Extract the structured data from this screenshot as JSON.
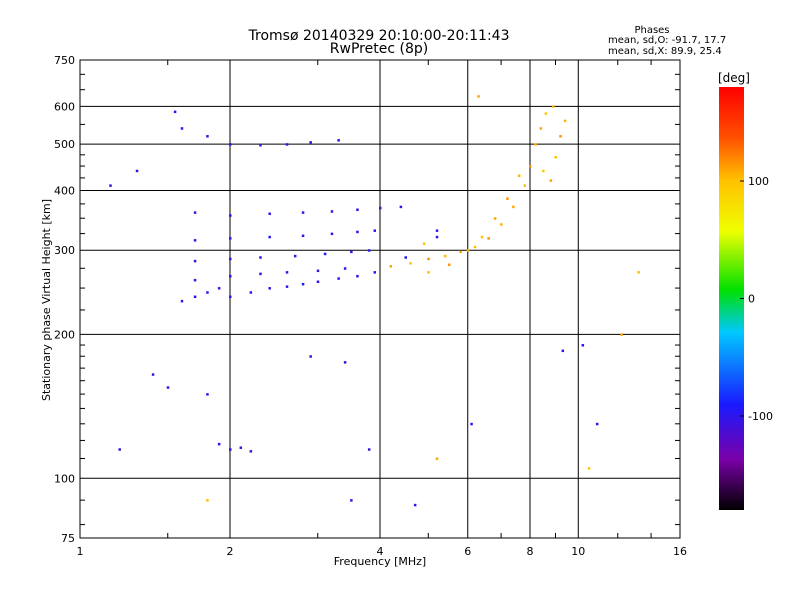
{
  "header": {
    "title": "Tromsø 20140329 20:10:00-20:11:43",
    "subtitle": "RwPretec (8p)"
  },
  "stats": {
    "heading": "Phases",
    "line_o": "mean, sd,O: -91.7, 17.7",
    "line_x": "mean, sd,X:  89.9, 25.4"
  },
  "colorbar": {
    "label": "[deg]",
    "ticks": [
      {
        "value": 100,
        "text": "100"
      },
      {
        "value": 0,
        "text": "0"
      },
      {
        "value": -100,
        "text": "-100"
      }
    ],
    "range": [
      -180,
      180
    ]
  },
  "chart_data": {
    "type": "scatter",
    "title": "Tromsø 20140329 20:10:00-20:11:43",
    "subtitle": "RwPretec (8p)",
    "xlabel": "Frequency [MHz]",
    "ylabel": "Stationary phase Virtual Height [km]",
    "x_scale": "log",
    "y_scale": "log",
    "xlim": [
      1,
      16
    ],
    "ylim": [
      75,
      750
    ],
    "grid": true,
    "x_ticks": [
      {
        "value": 1,
        "text": "1"
      },
      {
        "value": 2,
        "text": "2"
      },
      {
        "value": 4,
        "text": "4"
      },
      {
        "value": 6,
        "text": "6"
      },
      {
        "value": 8,
        "text": "8"
      },
      {
        "value": 10,
        "text": "10"
      },
      {
        "value": 16,
        "text": "16"
      }
    ],
    "y_ticks": [
      {
        "value": 75,
        "text": "75"
      },
      {
        "value": 100,
        "text": "100"
      },
      {
        "value": 200,
        "text": "200"
      },
      {
        "value": 300,
        "text": "300"
      },
      {
        "value": 400,
        "text": "400"
      },
      {
        "value": 500,
        "text": "500"
      },
      {
        "value": 600,
        "text": "600"
      },
      {
        "value": 750,
        "text": "750"
      }
    ],
    "color_by": "phase (deg)",
    "series": [
      {
        "values": [
          [
            1.6,
            235,
            -105
          ],
          [
            1.7,
            240,
            -100
          ],
          [
            1.8,
            245,
            -95
          ],
          [
            1.9,
            250,
            -110
          ],
          [
            2.0,
            240,
            -100
          ],
          [
            2.2,
            245,
            -95
          ],
          [
            2.4,
            250,
            -105
          ],
          [
            2.6,
            252,
            -100
          ],
          [
            2.8,
            255,
            -90
          ],
          [
            3.0,
            258,
            -100
          ],
          [
            3.3,
            262,
            -95
          ],
          [
            3.6,
            265,
            -100
          ],
          [
            3.9,
            270,
            -90
          ],
          [
            1.7,
            260,
            -100
          ],
          [
            2.0,
            265,
            -95
          ],
          [
            2.3,
            268,
            -105
          ],
          [
            2.6,
            270,
            -100
          ],
          [
            3.0,
            272,
            -110
          ],
          [
            3.4,
            275,
            -95
          ],
          [
            1.7,
            285,
            -100
          ],
          [
            2.0,
            288,
            -105
          ],
          [
            2.3,
            290,
            -95
          ],
          [
            2.7,
            292,
            -100
          ],
          [
            3.1,
            295,
            -90
          ],
          [
            3.5,
            298,
            -100
          ],
          [
            3.8,
            300,
            -95
          ],
          [
            1.7,
            315,
            -100
          ],
          [
            2.0,
            318,
            -110
          ],
          [
            2.4,
            320,
            -95
          ],
          [
            2.8,
            322,
            -100
          ],
          [
            3.2,
            325,
            -105
          ],
          [
            3.6,
            328,
            -95
          ],
          [
            3.9,
            330,
            -100
          ],
          [
            1.7,
            360,
            -100
          ],
          [
            2.0,
            355,
            -95
          ],
          [
            2.4,
            358,
            -105
          ],
          [
            2.8,
            360,
            -100
          ],
          [
            3.2,
            362,
            -95
          ],
          [
            3.6,
            365,
            -100
          ],
          [
            4.0,
            368,
            -105
          ],
          [
            4.4,
            370,
            -95
          ]
        ]
      },
      {
        "values": [
          [
            1.8,
            520,
            -100
          ],
          [
            2.0,
            500,
            -95
          ],
          [
            2.3,
            498,
            -105
          ],
          [
            2.6,
            500,
            -100
          ],
          [
            2.9,
            505,
            -95
          ],
          [
            3.3,
            510,
            -100
          ],
          [
            1.55,
            585,
            -100
          ],
          [
            1.6,
            540,
            -95
          ],
          [
            1.9,
            118,
            -100
          ],
          [
            2.0,
            115,
            -95
          ],
          [
            2.1,
            116,
            -105
          ],
          [
            2.2,
            114,
            -100
          ]
        ]
      },
      {
        "values": [
          [
            4.2,
            278,
            110
          ],
          [
            4.6,
            282,
            100
          ],
          [
            5.0,
            288,
            115
          ],
          [
            5.4,
            292,
            105
          ],
          [
            5.8,
            298,
            110
          ],
          [
            6.2,
            305,
            100
          ],
          [
            6.6,
            318,
            115
          ],
          [
            7.0,
            340,
            105
          ],
          [
            7.4,
            370,
            110
          ],
          [
            7.8,
            410,
            100
          ],
          [
            8.0,
            450,
            115
          ],
          [
            8.2,
            500,
            105
          ],
          [
            8.4,
            540,
            110
          ],
          [
            8.6,
            580,
            100
          ],
          [
            5.0,
            270,
            100
          ],
          [
            5.5,
            280,
            115
          ],
          [
            6.0,
            300,
            105
          ],
          [
            6.4,
            320,
            100
          ],
          [
            6.8,
            350,
            110
          ],
          [
            7.2,
            385,
            115
          ],
          [
            7.6,
            430,
            105
          ],
          [
            8.8,
            420,
            110
          ],
          [
            9.0,
            470,
            100
          ],
          [
            9.2,
            520,
            115
          ],
          [
            9.4,
            560,
            105
          ],
          [
            8.5,
            440,
            95
          ],
          [
            8.9,
            600,
            105
          ]
        ]
      },
      {
        "values": [
          [
            1.15,
            410,
            -110
          ],
          [
            1.3,
            440,
            -100
          ],
          [
            1.4,
            165,
            -105
          ],
          [
            1.5,
            155,
            -100
          ],
          [
            1.2,
            115,
            -110
          ],
          [
            1.8,
            150,
            -95
          ],
          [
            2.9,
            180,
            -100
          ],
          [
            3.4,
            175,
            -100
          ],
          [
            3.8,
            115,
            -105
          ],
          [
            3.5,
            90,
            -100
          ],
          [
            4.5,
            290,
            -95
          ],
          [
            5.2,
            330,
            -100
          ],
          [
            5.2,
            320,
            -100
          ],
          [
            6.1,
            130,
            -95
          ],
          [
            9.3,
            185,
            -100
          ],
          [
            10.9,
            130,
            -100
          ],
          [
            10.2,
            190,
            -100
          ],
          [
            13.2,
            270,
            100
          ],
          [
            12.2,
            200,
            110
          ],
          [
            10.5,
            105,
            100
          ],
          [
            5.2,
            110,
            110
          ],
          [
            1.8,
            90,
            100
          ],
          [
            4.9,
            310,
            100
          ],
          [
            6.3,
            630,
            110
          ],
          [
            4.7,
            88,
            -100
          ]
        ]
      }
    ]
  }
}
